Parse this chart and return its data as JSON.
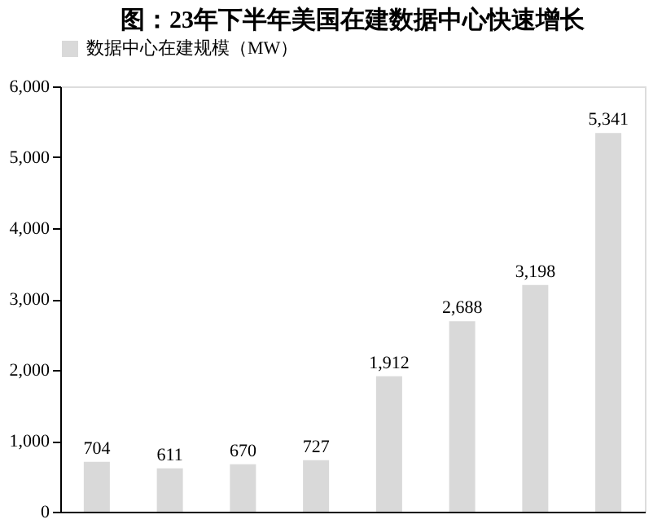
{
  "chart_data": {
    "type": "bar",
    "title": "图：23年下半年美国在建数据中心快速增长",
    "categories": [
      null,
      null,
      null,
      null,
      null,
      null,
      null,
      null
    ],
    "series": [
      {
        "name": "数据中心在建规模（MW）",
        "color": "#d9d9d9",
        "values": [
          704,
          611,
          670,
          727,
          1912,
          2688,
          3198,
          5341
        ],
        "value_labels": [
          "704",
          "611",
          "670",
          "727",
          "1,912",
          "2,688",
          "3,198",
          "5,341"
        ]
      }
    ],
    "ylim": [
      0,
      6000
    ],
    "yticks": [
      {
        "value": 0,
        "label": "0"
      },
      {
        "value": 1000,
        "label": "1,000"
      },
      {
        "value": 2000,
        "label": "2,000"
      },
      {
        "value": 3000,
        "label": "3,000"
      },
      {
        "value": 4000,
        "label": "4,000"
      },
      {
        "value": 5000,
        "label": "5,000"
      },
      {
        "value": 6000,
        "label": "6,000"
      }
    ],
    "legend": "top",
    "grid": false,
    "tick_labels": "y"
  }
}
